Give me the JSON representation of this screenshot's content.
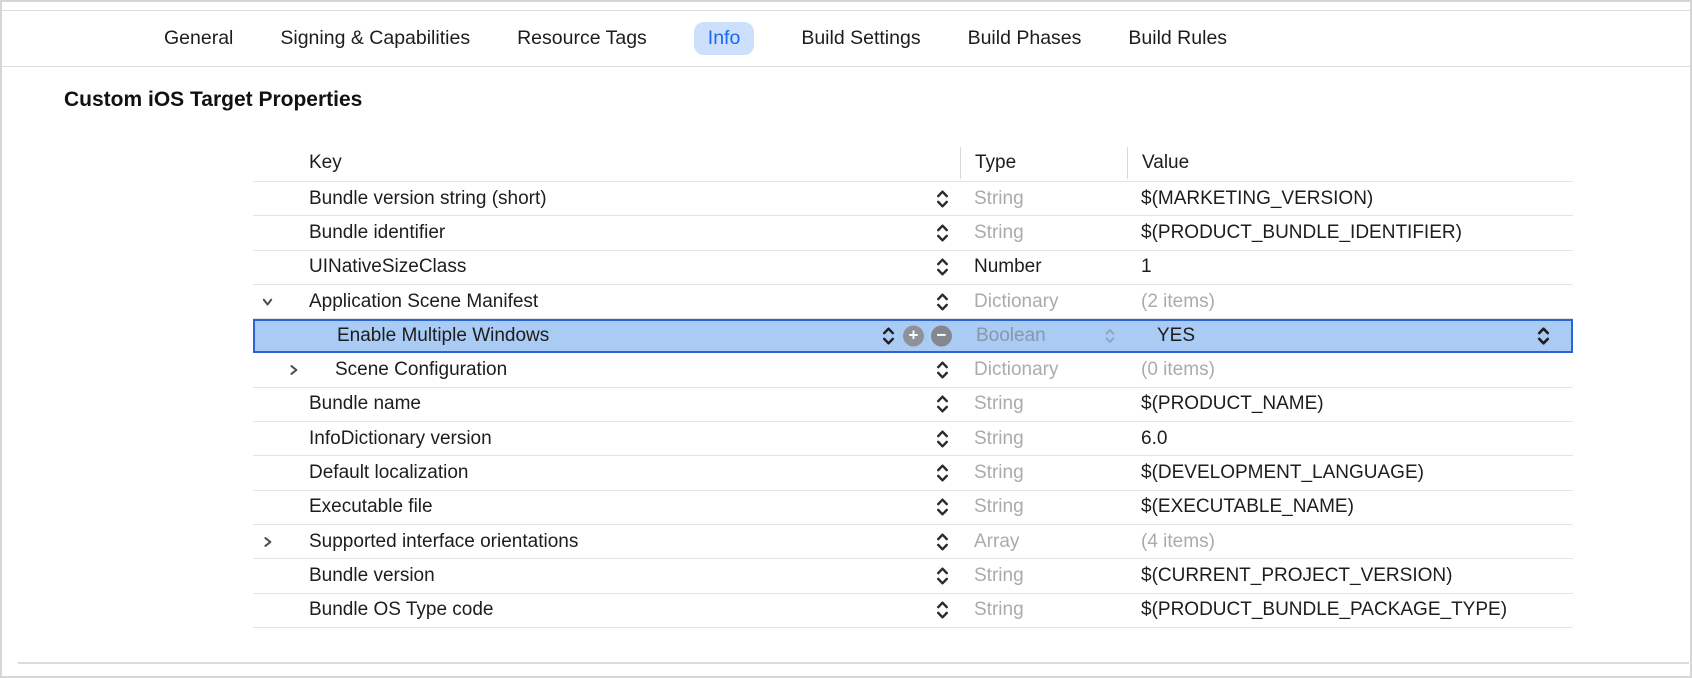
{
  "tabs": {
    "items": [
      {
        "label": "General",
        "selected": false
      },
      {
        "label": "Signing & Capabilities",
        "selected": false
      },
      {
        "label": "Resource Tags",
        "selected": false
      },
      {
        "label": "Info",
        "selected": true
      },
      {
        "label": "Build Settings",
        "selected": false
      },
      {
        "label": "Build Phases",
        "selected": false
      },
      {
        "label": "Build Rules",
        "selected": false
      }
    ]
  },
  "page": {
    "title": "Custom iOS Target Properties"
  },
  "colors": {
    "accent_blue": "#1b66f0",
    "tab_pill_bg": "#cce0fb",
    "selected_row_bg": "#a9cbf4",
    "selected_row_border": "#2b63d9",
    "muted_text": "#ababab"
  },
  "table": {
    "columns": [
      "Key",
      "Type",
      "Value"
    ],
    "rows": [
      {
        "key": "Bundle version string (short)",
        "type": "String",
        "value": "$(MARKETING_VERSION)",
        "indent": 0,
        "disclosure": null,
        "type_gray": true,
        "value_gray": false,
        "selected": false
      },
      {
        "key": "Bundle identifier",
        "type": "String",
        "value": "$(PRODUCT_BUNDLE_IDENTIFIER)",
        "indent": 0,
        "disclosure": null,
        "type_gray": true,
        "value_gray": false,
        "selected": false
      },
      {
        "key": "UINativeSizeClass",
        "type": "Number",
        "value": "1",
        "indent": 0,
        "disclosure": null,
        "type_gray": false,
        "value_gray": false,
        "selected": false
      },
      {
        "key": "Application Scene Manifest",
        "type": "Dictionary",
        "value": "(2 items)",
        "indent": 0,
        "disclosure": "expanded",
        "type_gray": true,
        "value_gray": true,
        "selected": false
      },
      {
        "key": "Enable Multiple Windows",
        "type": "Boolean",
        "value": "YES",
        "indent": 1,
        "disclosure": null,
        "type_gray": true,
        "value_gray": false,
        "selected": true,
        "has_add_remove": true,
        "type_popup": true,
        "value_popup": true
      },
      {
        "key": "Scene Configuration",
        "type": "Dictionary",
        "value": "(0 items)",
        "indent": 1,
        "disclosure": "collapsed",
        "type_gray": true,
        "value_gray": true,
        "selected": false
      },
      {
        "key": "Bundle name",
        "type": "String",
        "value": "$(PRODUCT_NAME)",
        "indent": 0,
        "disclosure": null,
        "type_gray": true,
        "value_gray": false,
        "selected": false
      },
      {
        "key": "InfoDictionary version",
        "type": "String",
        "value": "6.0",
        "indent": 0,
        "disclosure": null,
        "type_gray": true,
        "value_gray": false,
        "selected": false
      },
      {
        "key": "Default localization",
        "type": "String",
        "value": "$(DEVELOPMENT_LANGUAGE)",
        "indent": 0,
        "disclosure": null,
        "type_gray": true,
        "value_gray": false,
        "selected": false
      },
      {
        "key": "Executable file",
        "type": "String",
        "value": "$(EXECUTABLE_NAME)",
        "indent": 0,
        "disclosure": null,
        "type_gray": true,
        "value_gray": false,
        "selected": false
      },
      {
        "key": "Supported interface orientations",
        "type": "Array",
        "value": "(4 items)",
        "indent": 0,
        "disclosure": "collapsed",
        "type_gray": true,
        "value_gray": true,
        "selected": false
      },
      {
        "key": "Bundle version",
        "type": "String",
        "value": "$(CURRENT_PROJECT_VERSION)",
        "indent": 0,
        "disclosure": null,
        "type_gray": true,
        "value_gray": false,
        "selected": false
      },
      {
        "key": "Bundle OS Type code",
        "type": "String",
        "value": "$(PRODUCT_BUNDLE_PACKAGE_TYPE)",
        "indent": 0,
        "disclosure": null,
        "type_gray": true,
        "value_gray": false,
        "selected": false
      }
    ]
  }
}
